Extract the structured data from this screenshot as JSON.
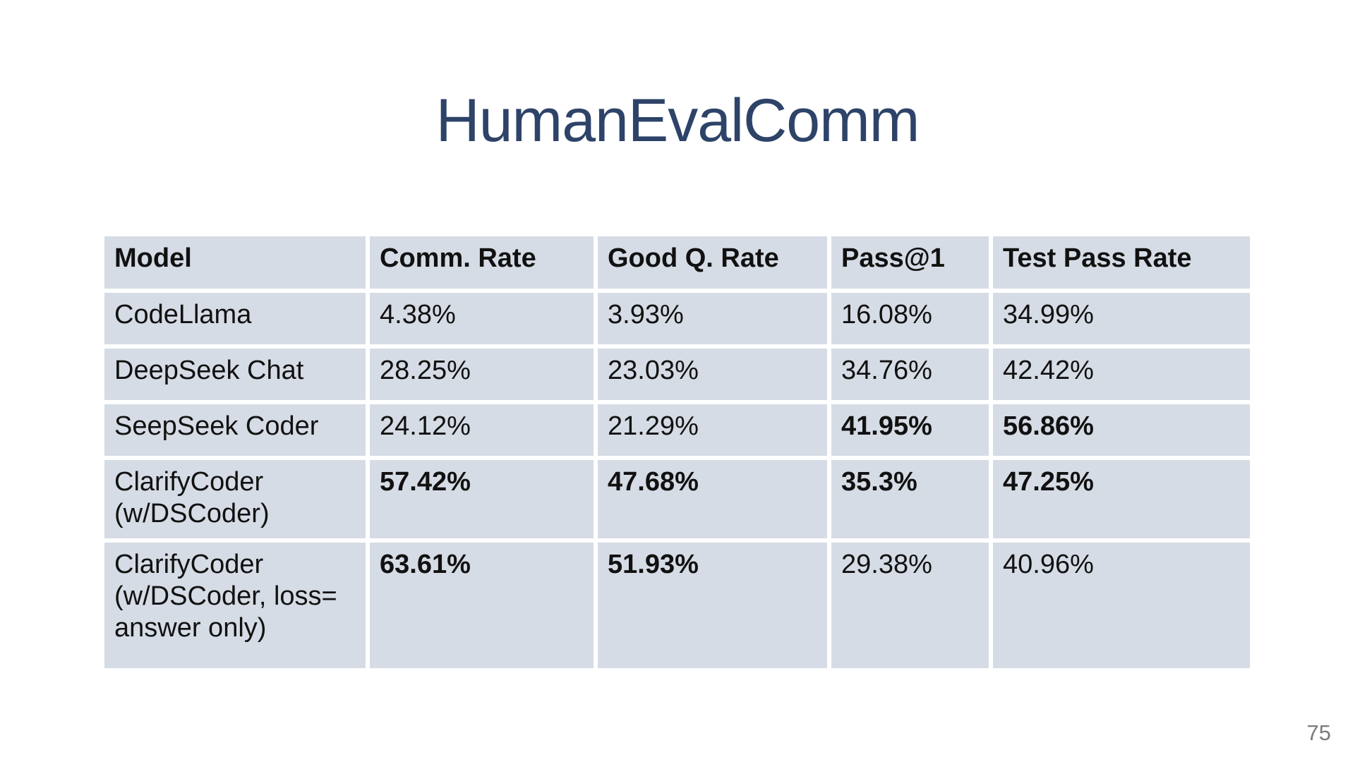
{
  "slide": {
    "title": "HumanEvalComm",
    "page_number": "75"
  },
  "colors": {
    "title_text": "#2e4368",
    "cell_background": "#d6dce5",
    "cell_text": "#111111",
    "page_number_text": "#7b7b7b",
    "slide_background": "#ffffff"
  },
  "table": {
    "headers": [
      "Model",
      "Comm. Rate",
      "Good Q. Rate",
      "Pass@1",
      "Test Pass Rate"
    ],
    "rows": [
      [
        {
          "text": "CodeLlama",
          "bold": false
        },
        {
          "text": "4.38%",
          "bold": false
        },
        {
          "text": "3.93%",
          "bold": false
        },
        {
          "text": "16.08%",
          "bold": false
        },
        {
          "text": "34.99%",
          "bold": false
        }
      ],
      [
        {
          "text": "DeepSeek Chat",
          "bold": false
        },
        {
          "text": "28.25%",
          "bold": false
        },
        {
          "text": "23.03%",
          "bold": false
        },
        {
          "text": "34.76%",
          "bold": false
        },
        {
          "text": "42.42%",
          "bold": false
        }
      ],
      [
        {
          "text": "SeepSeek Coder",
          "bold": false
        },
        {
          "text": "24.12%",
          "bold": false
        },
        {
          "text": "21.29%",
          "bold": false
        },
        {
          "text": "41.95%",
          "bold": true
        },
        {
          "text": "56.86%",
          "bold": true
        }
      ],
      [
        {
          "text": "ClarifyCoder\n(w/DSCoder)",
          "bold": false
        },
        {
          "text": "57.42%",
          "bold": true
        },
        {
          "text": "47.68%",
          "bold": true
        },
        {
          "text": "35.3%",
          "bold": true
        },
        {
          "text": "47.25%",
          "bold": true
        }
      ],
      [
        {
          "text": "ClarifyCoder\n(w/DSCoder, loss=\nanswer only)",
          "bold": false
        },
        {
          "text": "63.61%",
          "bold": true
        },
        {
          "text": "51.93%",
          "bold": true
        },
        {
          "text": "29.38%",
          "bold": false
        },
        {
          "text": "40.96%",
          "bold": false
        }
      ]
    ]
  },
  "chart_data": {
    "type": "table",
    "title": "HumanEvalComm",
    "columns": [
      "Model",
      "Comm. Rate",
      "Good Q. Rate",
      "Pass@1",
      "Test Pass Rate"
    ],
    "rows": [
      [
        "CodeLlama",
        "4.38%",
        "3.93%",
        "16.08%",
        "34.99%"
      ],
      [
        "DeepSeek Chat",
        "28.25%",
        "23.03%",
        "34.76%",
        "42.42%"
      ],
      [
        "SeepSeek Coder",
        "24.12%",
        "21.29%",
        "41.95%",
        "56.86%"
      ],
      [
        "ClarifyCoder (w/DSCoder)",
        "57.42%",
        "47.68%",
        "35.3%",
        "47.25%"
      ],
      [
        "ClarifyCoder (w/DSCoder, loss= answer only)",
        "63.61%",
        "51.93%",
        "29.38%",
        "40.96%"
      ]
    ]
  }
}
